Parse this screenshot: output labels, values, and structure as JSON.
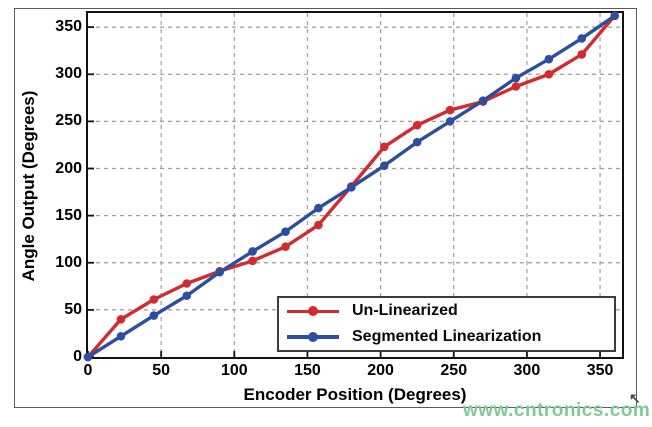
{
  "figure": {
    "watermark": "www.cntronics.com",
    "watermark_color": "#82c996"
  },
  "chart_data": {
    "type": "line",
    "title": "",
    "xlabel": "Encoder Position (Degrees)",
    "ylabel": "Angle Output (Degrees)",
    "xlim": [
      0,
      365
    ],
    "ylim": [
      0,
      365
    ],
    "xticks": [
      0,
      50,
      100,
      150,
      200,
      250,
      300,
      350
    ],
    "yticks": [
      0,
      50,
      100,
      150,
      200,
      250,
      300,
      350
    ],
    "grid": true,
    "grid_style": "dashed",
    "legend_position": "lower-right-inside",
    "x": [
      0,
      22.5,
      45,
      67.5,
      90,
      112.5,
      135,
      157.5,
      180,
      202.5,
      225,
      247.5,
      270,
      292.5,
      315,
      337.5,
      360
    ],
    "series": [
      {
        "name": "Un-Linearized",
        "color": "#d22b2f",
        "marker": "circle",
        "values": [
          0,
          40,
          61,
          78,
          91,
          102,
          117,
          140,
          181,
          223,
          246,
          262,
          271,
          287,
          300,
          321,
          362
        ]
      },
      {
        "name": "Segmented Linearization",
        "color": "#2b4f9e",
        "marker": "circle",
        "values": [
          0,
          22,
          44,
          65,
          90,
          112,
          133,
          158,
          180,
          203,
          228,
          250,
          272,
          296,
          316,
          338,
          362
        ]
      }
    ]
  }
}
